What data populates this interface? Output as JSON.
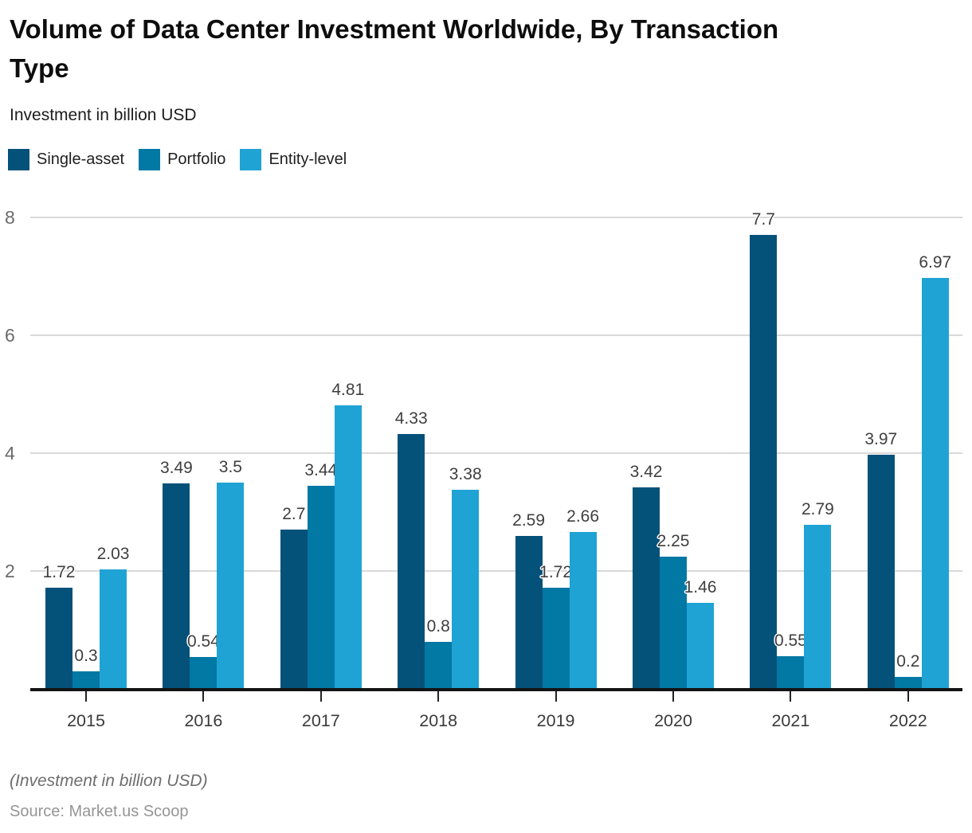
{
  "header": {
    "title": "Volume of Data Center Investment Worldwide, By Transaction Type",
    "subtitle": "Investment in billion USD"
  },
  "chart_data": {
    "type": "bar",
    "title": "Volume of Data Center Investment Worldwide, By Transaction Type",
    "xlabel": "",
    "ylabel": "Investment in billion USD",
    "categories": [
      "2015",
      "2016",
      "2017",
      "2018",
      "2019",
      "2020",
      "2021",
      "2022"
    ],
    "series": [
      {
        "name": "Single-asset",
        "color": "#04517a",
        "values": [
          1.72,
          3.49,
          2.7,
          4.33,
          2.59,
          3.42,
          7.7,
          3.97
        ]
      },
      {
        "name": "Portfolio",
        "color": "#0278a4",
        "values": [
          0.3,
          0.54,
          3.44,
          0.8,
          1.72,
          2.25,
          0.55,
          0.2
        ]
      },
      {
        "name": "Entity-level",
        "color": "#1fa3d4",
        "values": [
          2.03,
          3.5,
          4.81,
          3.38,
          2.66,
          1.46,
          2.79,
          6.97
        ]
      }
    ],
    "ylim": [
      0,
      8
    ],
    "yticks": [
      2,
      4,
      6,
      8
    ],
    "grid": true,
    "legend_position": "top",
    "grid_color": "#d9d9d9",
    "axis_color": "#141414",
    "value_label_color": "#3f3f3f"
  },
  "footer": {
    "note": "(Investment in billion USD)",
    "source": "Source: Market.us Scoop"
  }
}
